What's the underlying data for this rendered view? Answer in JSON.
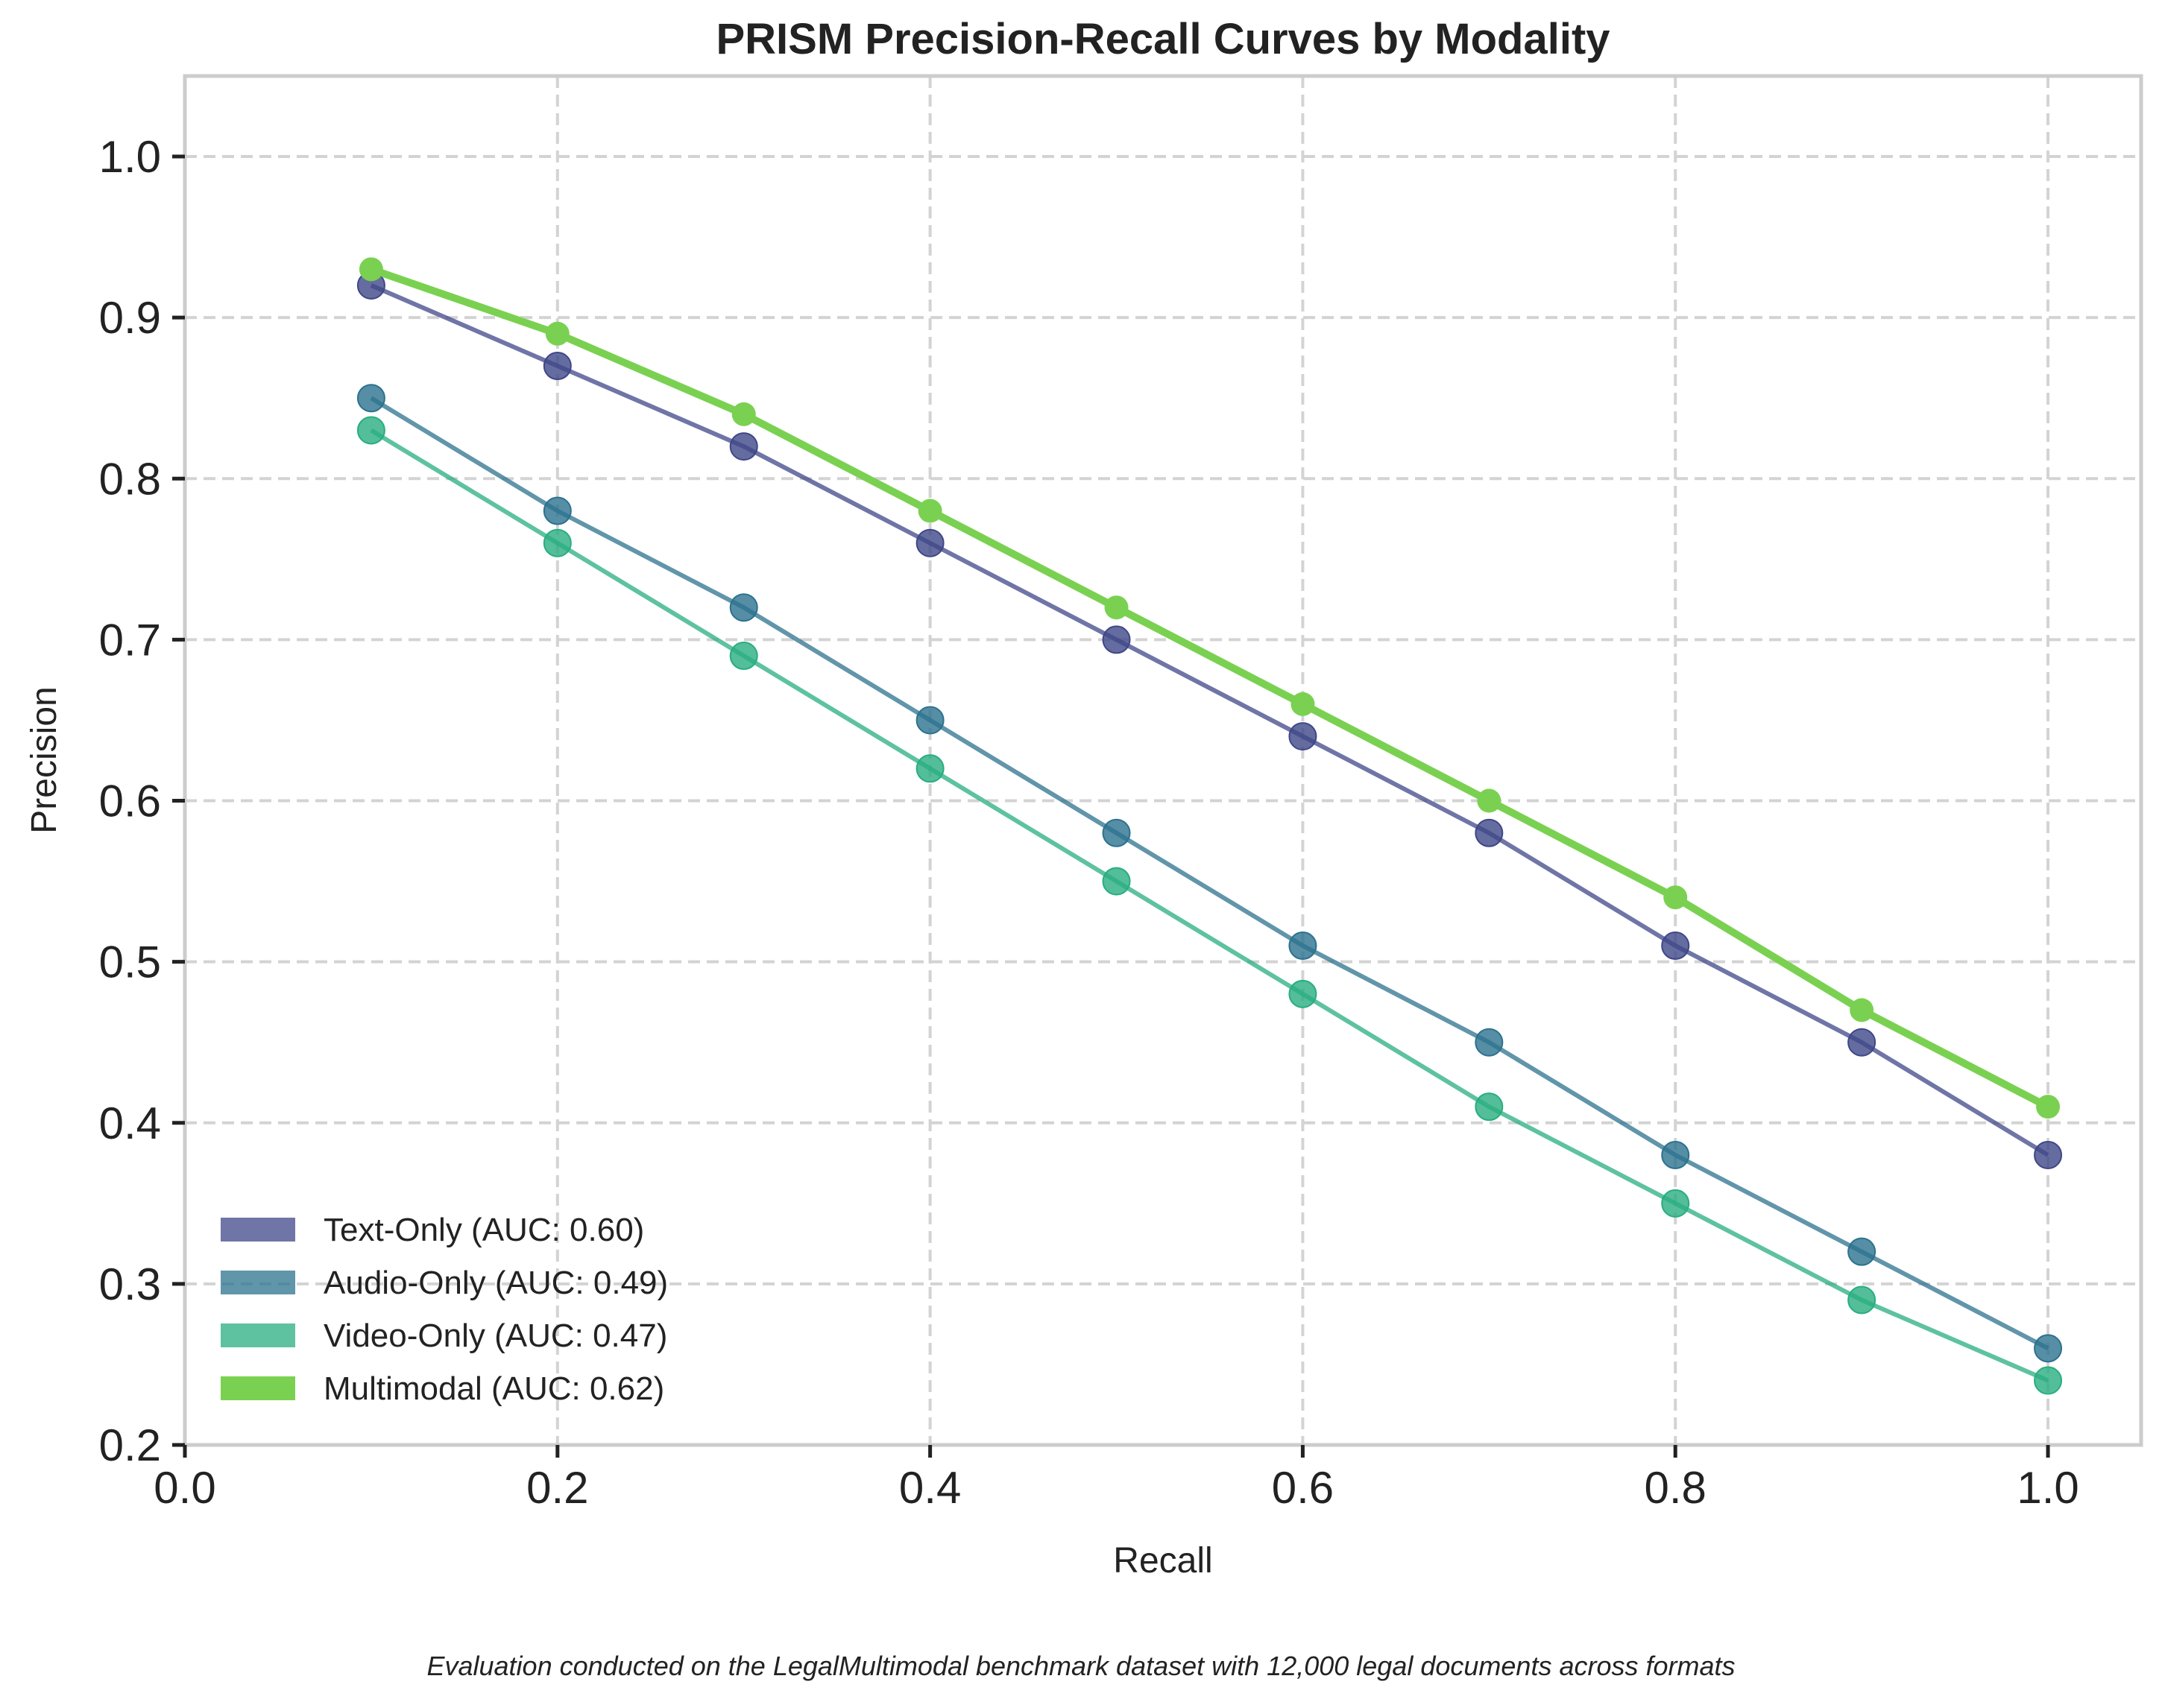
{
  "chart_data": {
    "type": "line",
    "title": "PRISM Precision-Recall Curves by Modality",
    "xlabel": "Recall",
    "ylabel": "Precision",
    "xlim": [
      0.0,
      1.05
    ],
    "ylim": [
      0.2,
      1.05
    ],
    "xticks": [
      "0.0",
      "0.2",
      "0.4",
      "0.6",
      "0.8",
      "1.0"
    ],
    "yticks": [
      "0.2",
      "0.3",
      "0.4",
      "0.5",
      "0.6",
      "0.7",
      "0.8",
      "0.9",
      "1.0"
    ],
    "grid": true,
    "legend_position": "lower-left",
    "x": [
      0.1,
      0.2,
      0.3,
      0.4,
      0.5,
      0.6,
      0.7,
      0.8,
      0.9,
      1.0
    ],
    "series": [
      {
        "name": "Text-Only (AUC: 0.60)",
        "color": "#3f4788",
        "emphasis": false,
        "values": [
          0.92,
          0.87,
          0.82,
          0.76,
          0.7,
          0.64,
          0.58,
          0.51,
          0.45,
          0.38
        ]
      },
      {
        "name": "Audio-Only (AUC: 0.49)",
        "color": "#2c728e",
        "emphasis": false,
        "values": [
          0.85,
          0.78,
          0.72,
          0.65,
          0.58,
          0.51,
          0.45,
          0.38,
          0.32,
          0.26
        ]
      },
      {
        "name": "Video-Only (AUC: 0.47)",
        "color": "#28ae80",
        "emphasis": false,
        "values": [
          0.83,
          0.76,
          0.69,
          0.62,
          0.55,
          0.48,
          0.41,
          0.35,
          0.29,
          0.24
        ]
      },
      {
        "name": "Multimodal (AUC: 0.62)",
        "color": "#7ad151",
        "emphasis": true,
        "values": [
          0.93,
          0.89,
          0.84,
          0.78,
          0.72,
          0.66,
          0.6,
          0.54,
          0.47,
          0.41
        ]
      }
    ]
  },
  "footnote": "Evaluation conducted on the LegalMultimodal benchmark dataset with 12,000 legal documents across formats"
}
